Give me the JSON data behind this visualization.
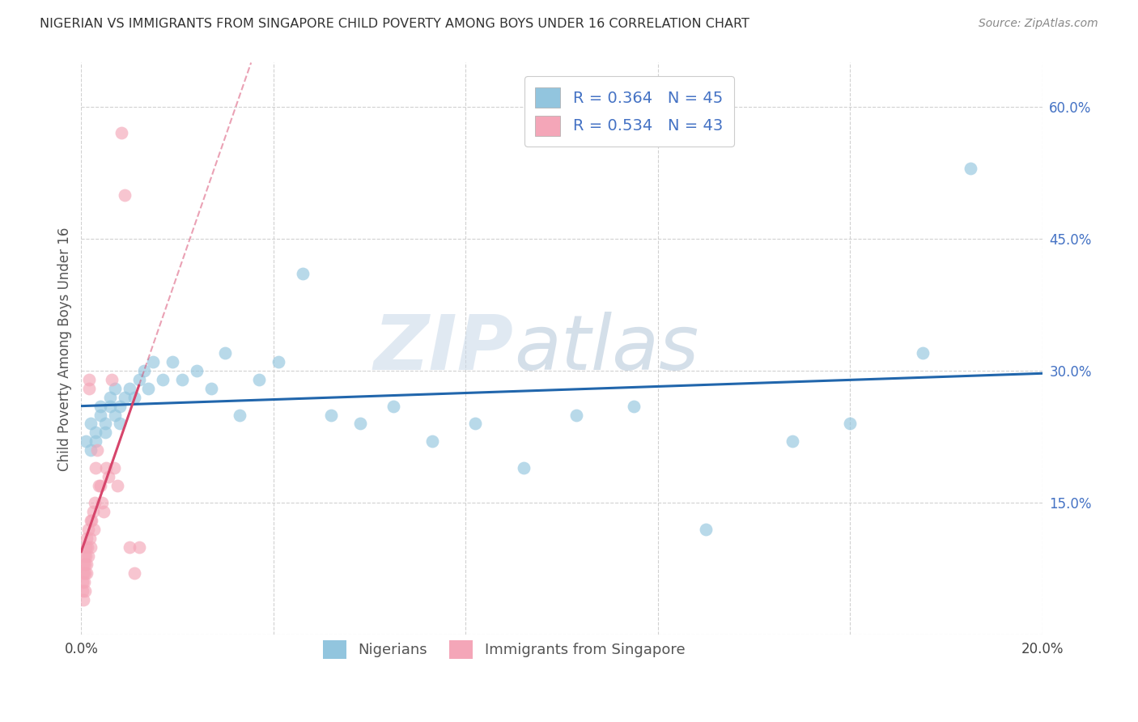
{
  "title": "NIGERIAN VS IMMIGRANTS FROM SINGAPORE CHILD POVERTY AMONG BOYS UNDER 16 CORRELATION CHART",
  "source": "Source: ZipAtlas.com",
  "ylabel": "Child Poverty Among Boys Under 16",
  "xlim": [
    0.0,
    0.2
  ],
  "ylim": [
    0.0,
    0.65
  ],
  "xticks": [
    0.0,
    0.04,
    0.08,
    0.12,
    0.16,
    0.2
  ],
  "yticks": [
    0.0,
    0.15,
    0.3,
    0.45,
    0.6
  ],
  "nigerians_color": "#92c5de",
  "singapore_color": "#f4a6b8",
  "nigerians_line_color": "#2166ac",
  "singapore_line_color": "#d6456b",
  "nigerians_R": 0.364,
  "nigerians_N": 45,
  "singapore_R": 0.534,
  "singapore_N": 43,
  "watermark_text": "ZIPatlas",
  "legend_label_1": "Nigerians",
  "legend_label_2": "Immigrants from Singapore",
  "nigerians_x": [
    0.001,
    0.002,
    0.002,
    0.003,
    0.003,
    0.004,
    0.004,
    0.005,
    0.005,
    0.006,
    0.006,
    0.007,
    0.007,
    0.008,
    0.008,
    0.009,
    0.01,
    0.011,
    0.012,
    0.013,
    0.014,
    0.015,
    0.017,
    0.019,
    0.021,
    0.024,
    0.027,
    0.03,
    0.033,
    0.037,
    0.041,
    0.046,
    0.052,
    0.058,
    0.065,
    0.073,
    0.082,
    0.092,
    0.103,
    0.115,
    0.13,
    0.148,
    0.16,
    0.175,
    0.185
  ],
  "nigerians_y": [
    0.22,
    0.21,
    0.24,
    0.23,
    0.22,
    0.26,
    0.25,
    0.24,
    0.23,
    0.26,
    0.27,
    0.25,
    0.28,
    0.24,
    0.26,
    0.27,
    0.28,
    0.27,
    0.29,
    0.3,
    0.28,
    0.31,
    0.29,
    0.31,
    0.29,
    0.3,
    0.28,
    0.32,
    0.25,
    0.29,
    0.31,
    0.41,
    0.25,
    0.24,
    0.26,
    0.22,
    0.24,
    0.19,
    0.25,
    0.26,
    0.12,
    0.22,
    0.24,
    0.32,
    0.53
  ],
  "singapore_x": [
    0.0002,
    0.0003,
    0.0004,
    0.0004,
    0.0005,
    0.0006,
    0.0006,
    0.0007,
    0.0008,
    0.0008,
    0.0009,
    0.001,
    0.0011,
    0.0012,
    0.0012,
    0.0013,
    0.0014,
    0.0015,
    0.0016,
    0.0017,
    0.0018,
    0.0019,
    0.002,
    0.0022,
    0.0024,
    0.0026,
    0.0028,
    0.003,
    0.0033,
    0.0036,
    0.0039,
    0.0043,
    0.0047,
    0.0052,
    0.0057,
    0.0063,
    0.0069,
    0.0076,
    0.0083,
    0.0091,
    0.01,
    0.011,
    0.012
  ],
  "singapore_y": [
    0.06,
    0.05,
    0.07,
    0.04,
    0.08,
    0.06,
    0.09,
    0.05,
    0.07,
    0.08,
    0.1,
    0.09,
    0.07,
    0.11,
    0.08,
    0.1,
    0.12,
    0.09,
    0.28,
    0.29,
    0.11,
    0.13,
    0.1,
    0.13,
    0.14,
    0.12,
    0.15,
    0.19,
    0.21,
    0.17,
    0.17,
    0.15,
    0.14,
    0.19,
    0.18,
    0.29,
    0.19,
    0.17,
    0.57,
    0.5,
    0.1,
    0.07,
    0.1
  ]
}
